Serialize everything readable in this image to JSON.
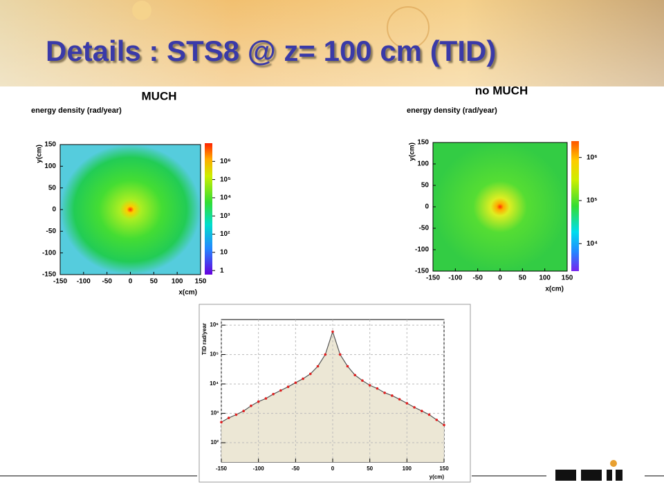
{
  "title": "Details : STS8 @ z= 100 cm (TID)",
  "panels": [
    {
      "label": "MUCH",
      "heading": "energy density (rad/year)",
      "x_title": "x(cm)",
      "y_title": "y(cm)",
      "xlim": [
        -150,
        150
      ],
      "ylim": [
        -150,
        150
      ],
      "xticks": [
        -150,
        -100,
        -50,
        0,
        50,
        100,
        150
      ],
      "yticks": [
        150,
        100,
        50,
        0,
        -50,
        -100,
        -150
      ],
      "zlim": [
        0.6,
        10000000
      ],
      "log_z": true,
      "zticks": [
        {
          "value": 1000000,
          "label": "10⁶"
        },
        {
          "value": 100000,
          "label": "10⁵"
        },
        {
          "value": 10000,
          "label": "10⁴"
        },
        {
          "value": 1000,
          "label": "10³"
        },
        {
          "value": 100,
          "label": "10²"
        },
        10,
        1
      ]
    },
    {
      "label": "no MUCH",
      "heading": "energy density (rad/year)",
      "x_title": "x(cm)",
      "y_title": "y(cm)",
      "xlim": [
        -150,
        150
      ],
      "ylim": [
        -150,
        150
      ],
      "xticks": [
        -150,
        -100,
        -50,
        0,
        50,
        100,
        150
      ],
      "yticks": [
        150,
        100,
        50,
        0,
        -50,
        -100,
        -150
      ],
      "zlim": [
        2300,
        2400000
      ],
      "log_z": true,
      "zticks": [
        {
          "value": 1000000,
          "label": "10⁶"
        },
        {
          "value": 100000,
          "label": "10⁵"
        },
        {
          "value": 10000,
          "label": "10⁴"
        }
      ]
    }
  ],
  "chart_data": {
    "type": "line",
    "x_title": "y(cm)",
    "y_title": "TID rad/year",
    "log_y": true,
    "grid": true,
    "line_color": "#555555",
    "marker_color": "#e02020",
    "fill_color": "#ece7d5",
    "xlim": [
      -150,
      150
    ],
    "ylim": [
      22,
      1550000
    ],
    "xticks": [
      -150,
      -100,
      -50,
      0,
      50,
      100,
      150
    ],
    "yticks": [
      {
        "value": 1000000,
        "label": "10⁶"
      },
      {
        "value": 100000,
        "label": "10⁵"
      },
      {
        "value": 10000,
        "label": "10⁴"
      },
      {
        "value": 1000,
        "label": "10³"
      },
      {
        "value": 100,
        "label": "10²"
      }
    ],
    "x": [
      -150,
      -140,
      -130,
      -120,
      -110,
      -100,
      -90,
      -80,
      -70,
      -60,
      -50,
      -40,
      -30,
      -20,
      -10,
      0,
      10,
      20,
      30,
      40,
      50,
      60,
      70,
      80,
      90,
      100,
      110,
      120,
      130,
      140,
      150
    ],
    "values": [
      500,
      700,
      900,
      1200,
      1800,
      2500,
      3200,
      4500,
      6000,
      8000,
      11000,
      15000,
      22000,
      40000,
      100000,
      600000,
      100000,
      40000,
      20000,
      13000,
      9000,
      7000,
      5000,
      4000,
      3000,
      2200,
      1600,
      1200,
      900,
      600,
      400
    ]
  }
}
